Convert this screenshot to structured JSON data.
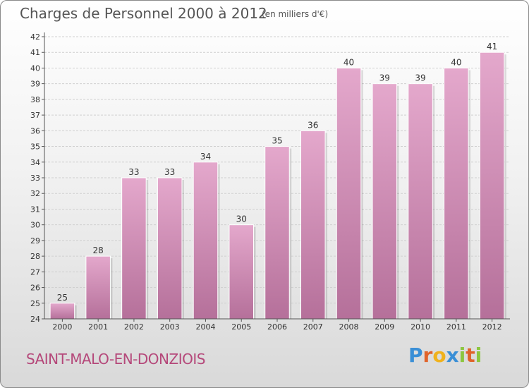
{
  "header": {
    "title": "Charges de Personnel 2000 à 2012",
    "subtitle": "(en milliers d'€)"
  },
  "footer": {
    "place": "SAINT-MALO-EN-DONZIOIS",
    "logo": "Proxiti",
    "logo_letters": [
      {
        "ch": "P",
        "color": "#3a8fd6"
      },
      {
        "ch": "r",
        "color": "#e0632a"
      },
      {
        "ch": "o",
        "color": "#f0b21d"
      },
      {
        "ch": "x",
        "color": "#3a8fd6"
      },
      {
        "ch": "i",
        "color": "#8cc63e"
      },
      {
        "ch": "t",
        "color": "#e0632a"
      },
      {
        "ch": "i",
        "color": "#8cc63e"
      }
    ]
  },
  "chart_data": {
    "type": "bar",
    "categories": [
      "2000",
      "2001",
      "2002",
      "2003",
      "2004",
      "2005",
      "2006",
      "2007",
      "2008",
      "2009",
      "2010",
      "2011",
      "2012"
    ],
    "values": [
      25,
      28,
      33,
      33,
      34,
      30,
      35,
      36,
      40,
      39,
      39,
      40,
      41
    ],
    "ylim": [
      24,
      42
    ],
    "yticks": [
      24,
      25,
      26,
      27,
      28,
      29,
      30,
      31,
      32,
      33,
      34,
      35,
      36,
      37,
      38,
      39,
      40,
      41,
      42
    ],
    "grid": true,
    "colors": {
      "bar_light": "#e4a8cc",
      "bar_dark": "#b5709a",
      "grid": "#d0d0d0",
      "axis": "#555555"
    }
  }
}
